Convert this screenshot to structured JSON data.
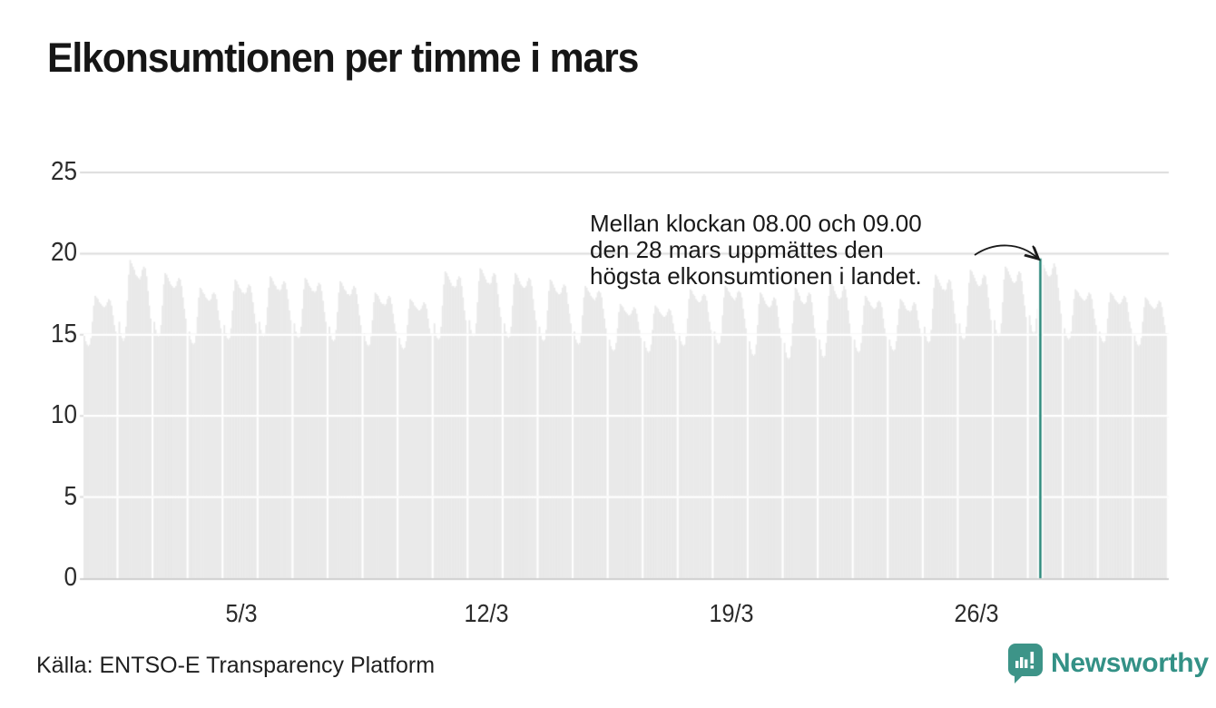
{
  "title": "Elkonsumtionen per timme i mars",
  "annotation": {
    "lines": [
      "Mellan klockan 08.00 och 09.00",
      "den 28 mars uppmättes den",
      "högsta elkonsumtionen i landet."
    ]
  },
  "footer": {
    "source": "Källa: ENTSO-E Transparency Platform",
    "brand": "Newsworthy"
  },
  "colors": {
    "bar": "#e9e9e9",
    "highlight": "#1d8172",
    "grid": "#dcdcdc",
    "baseline": "#cfcfcf",
    "grid_over_bars": "#ffffff",
    "brand_teal": "#339186",
    "text": "#2b2b2b"
  },
  "chart_data": {
    "type": "bar",
    "title": "Elkonsumtionen per timme i mars",
    "xlabel": "",
    "ylabel": "",
    "ylim": [
      0,
      25
    ],
    "y_ticks": [
      0,
      5,
      10,
      15,
      20,
      25
    ],
    "x_ticks": [
      {
        "label": "5/3",
        "day": 5
      },
      {
        "label": "12/3",
        "day": 12
      },
      {
        "label": "19/3",
        "day": 19
      },
      {
        "label": "26/3",
        "day": 26
      }
    ],
    "grid": true,
    "legend": "none",
    "highlight": {
      "date": "28/3",
      "hour": 8,
      "time_span": "08.00–09.00",
      "value": 19.7
    },
    "days": [
      {
        "date": "1/3",
        "values": [
          15.0,
          14.6,
          14.4,
          14.3,
          14.4,
          14.8,
          15.8,
          16.8,
          17.4,
          17.3,
          17.2,
          17.0,
          16.9,
          16.8,
          16.7,
          16.7,
          16.8,
          17.0,
          17.2,
          17.1,
          16.8,
          16.2,
          15.6,
          15.2
        ]
      },
      {
        "date": "2/3",
        "values": [
          15.8,
          15.1,
          14.8,
          14.6,
          14.8,
          15.5,
          17.1,
          18.7,
          19.6,
          19.4,
          19.2,
          19.0,
          18.7,
          18.6,
          18.5,
          18.4,
          18.6,
          19.0,
          19.2,
          19.1,
          18.6,
          17.7,
          16.8,
          16.0
        ]
      },
      {
        "date": "3/3",
        "values": [
          15.8,
          15.3,
          15.0,
          14.9,
          15.0,
          15.6,
          16.8,
          18.1,
          18.8,
          18.7,
          18.5,
          18.3,
          18.1,
          18.0,
          17.9,
          17.9,
          18.0,
          18.3,
          18.5,
          18.4,
          18.0,
          17.3,
          16.6,
          16.0
        ]
      },
      {
        "date": "4/3",
        "values": [
          15.2,
          14.7,
          14.5,
          14.4,
          14.5,
          15.0,
          16.1,
          17.3,
          17.9,
          17.8,
          17.6,
          17.5,
          17.3,
          17.2,
          17.1,
          17.1,
          17.2,
          17.5,
          17.6,
          17.5,
          17.2,
          16.5,
          15.9,
          15.4
        ]
      },
      {
        "date": "5/3",
        "values": [
          15.6,
          15.1,
          14.8,
          14.7,
          14.8,
          15.4,
          16.5,
          17.7,
          18.4,
          18.3,
          18.1,
          17.9,
          17.8,
          17.6,
          17.6,
          17.5,
          17.6,
          17.9,
          18.1,
          18.0,
          17.6,
          17.0,
          16.3,
          15.7
        ]
      },
      {
        "date": "6/3",
        "values": [
          15.8,
          15.3,
          15.0,
          14.9,
          15.0,
          15.6,
          16.7,
          17.9,
          18.6,
          18.5,
          18.3,
          18.1,
          18.0,
          17.8,
          17.8,
          17.7,
          17.8,
          18.1,
          18.3,
          18.2,
          17.8,
          17.2,
          16.5,
          15.9
        ]
      },
      {
        "date": "7/3",
        "values": [
          15.7,
          15.2,
          14.9,
          14.8,
          14.9,
          15.5,
          16.6,
          17.8,
          18.5,
          18.4,
          18.2,
          18.0,
          17.9,
          17.7,
          17.7,
          17.6,
          17.7,
          18.0,
          18.2,
          18.1,
          17.7,
          17.1,
          16.4,
          15.8
        ]
      },
      {
        "date": "8/3",
        "values": [
          15.5,
          15.0,
          14.7,
          14.6,
          14.7,
          15.3,
          16.4,
          17.6,
          18.3,
          18.2,
          18.0,
          17.8,
          17.7,
          17.5,
          17.5,
          17.4,
          17.5,
          17.8,
          18.0,
          17.9,
          17.5,
          16.9,
          16.2,
          15.6
        ]
      },
      {
        "date": "9/3",
        "values": [
          15.1,
          14.6,
          14.4,
          14.3,
          14.4,
          14.9,
          15.9,
          17.0,
          17.6,
          17.5,
          17.4,
          17.2,
          17.0,
          16.9,
          16.9,
          16.8,
          16.9,
          17.2,
          17.4,
          17.3,
          16.9,
          16.3,
          15.7,
          15.2
        ]
      },
      {
        "date": "10/3",
        "values": [
          14.8,
          14.4,
          14.2,
          14.1,
          14.2,
          14.6,
          15.6,
          16.6,
          17.2,
          17.1,
          17.0,
          16.8,
          16.7,
          16.6,
          16.5,
          16.5,
          16.6,
          16.8,
          17.0,
          16.9,
          16.6,
          16.0,
          15.4,
          15.0
        ]
      },
      {
        "date": "11/3",
        "values": [
          15.7,
          15.1,
          14.8,
          14.7,
          14.8,
          15.5,
          16.8,
          18.1,
          18.9,
          18.8,
          18.6,
          18.4,
          18.2,
          18.0,
          18.0,
          17.9,
          18.0,
          18.4,
          18.6,
          18.5,
          18.0,
          17.3,
          16.5,
          15.9
        ]
      },
      {
        "date": "12/3",
        "values": [
          15.9,
          15.3,
          15.0,
          14.9,
          15.0,
          15.7,
          17.0,
          18.3,
          19.1,
          19.0,
          18.8,
          18.6,
          18.4,
          18.2,
          18.2,
          18.1,
          18.2,
          18.6,
          18.8,
          18.7,
          18.2,
          17.5,
          16.7,
          16.1
        ]
      },
      {
        "date": "13/3",
        "values": [
          15.7,
          15.2,
          14.9,
          14.8,
          14.9,
          15.5,
          16.8,
          18.1,
          18.8,
          18.7,
          18.5,
          18.3,
          18.1,
          18.0,
          17.9,
          17.9,
          18.0,
          18.3,
          18.5,
          18.4,
          18.0,
          17.2,
          16.5,
          15.9
        ]
      },
      {
        "date": "14/3",
        "values": [
          15.5,
          15.0,
          14.7,
          14.6,
          14.7,
          15.3,
          16.5,
          17.7,
          18.4,
          18.3,
          18.1,
          17.9,
          17.7,
          17.6,
          17.5,
          17.5,
          17.6,
          17.9,
          18.1,
          18.0,
          17.6,
          16.9,
          16.3,
          15.7
        ]
      },
      {
        "date": "15/3",
        "values": [
          15.2,
          14.7,
          14.5,
          14.4,
          14.5,
          15.0,
          16.2,
          17.3,
          18.0,
          17.9,
          17.7,
          17.6,
          17.4,
          17.3,
          17.2,
          17.1,
          17.3,
          17.6,
          17.7,
          17.6,
          17.3,
          16.6,
          16.0,
          15.4
        ]
      },
      {
        "date": "16/3",
        "values": [
          14.7,
          14.3,
          14.1,
          14.0,
          14.1,
          14.5,
          15.4,
          16.4,
          16.9,
          16.8,
          16.7,
          16.5,
          16.4,
          16.3,
          16.2,
          16.2,
          16.3,
          16.5,
          16.7,
          16.6,
          16.3,
          15.8,
          15.3,
          14.8
        ]
      },
      {
        "date": "17/3",
        "values": [
          14.6,
          14.2,
          14.0,
          13.9,
          14.0,
          14.4,
          15.3,
          16.3,
          16.8,
          16.7,
          16.6,
          16.4,
          16.3,
          16.2,
          16.1,
          16.1,
          16.2,
          16.4,
          16.6,
          16.5,
          16.2,
          15.7,
          15.2,
          14.7
        ]
      },
      {
        "date": "18/3",
        "values": [
          15.1,
          14.6,
          14.4,
          14.3,
          14.4,
          14.9,
          16.0,
          17.2,
          17.8,
          17.7,
          17.5,
          17.4,
          17.2,
          17.1,
          17.0,
          17.0,
          17.1,
          17.4,
          17.5,
          17.4,
          17.1,
          16.4,
          15.8,
          15.3
        ]
      },
      {
        "date": "19/3",
        "values": [
          15.2,
          14.7,
          14.5,
          14.4,
          14.5,
          15.0,
          16.2,
          17.3,
          18.0,
          17.9,
          17.7,
          17.6,
          17.4,
          17.3,
          17.2,
          17.1,
          17.3,
          17.6,
          17.7,
          17.6,
          17.3,
          16.6,
          16.0,
          15.4
        ]
      },
      {
        "date": "20/3",
        "values": [
          14.6,
          14.1,
          13.8,
          13.7,
          13.8,
          14.4,
          15.6,
          16.9,
          17.6,
          17.5,
          17.3,
          17.1,
          16.9,
          16.8,
          16.7,
          16.7,
          16.8,
          17.1,
          17.3,
          17.2,
          16.8,
          16.1,
          15.4,
          14.8
        ]
      },
      {
        "date": "21/3",
        "values": [
          14.5,
          13.9,
          13.6,
          13.5,
          13.6,
          14.3,
          15.7,
          17.1,
          17.9,
          17.8,
          17.6,
          17.4,
          17.1,
          17.0,
          16.9,
          16.9,
          17.0,
          17.4,
          17.6,
          17.5,
          17.0,
          16.2,
          15.4,
          14.8
        ]
      },
      {
        "date": "22/3",
        "values": [
          14.7,
          14.1,
          13.7,
          13.6,
          13.7,
          14.5,
          15.9,
          17.4,
          18.3,
          18.2,
          18.0,
          17.7,
          17.5,
          17.3,
          17.2,
          17.2,
          17.3,
          17.7,
          18.0,
          17.8,
          17.3,
          16.5,
          15.7,
          14.9
        ]
      },
      {
        "date": "23/3",
        "values": [
          14.7,
          14.2,
          14.0,
          13.9,
          14.0,
          14.5,
          15.6,
          16.8,
          17.4,
          17.3,
          17.1,
          17.0,
          16.8,
          16.7,
          16.6,
          16.6,
          16.7,
          17.0,
          17.1,
          17.0,
          16.7,
          16.0,
          15.4,
          14.9
        ]
      },
      {
        "date": "24/3",
        "values": [
          14.7,
          14.3,
          14.1,
          14.0,
          14.1,
          14.6,
          15.6,
          16.6,
          17.2,
          17.1,
          17.0,
          16.8,
          16.6,
          16.5,
          16.5,
          16.4,
          16.5,
          16.8,
          17.0,
          16.9,
          16.5,
          15.9,
          15.4,
          14.9
        ]
      },
      {
        "date": "25/3",
        "values": [
          15.5,
          14.9,
          14.6,
          14.5,
          14.6,
          15.3,
          16.6,
          17.9,
          18.7,
          18.6,
          18.4,
          18.2,
          18.0,
          17.8,
          17.8,
          17.7,
          17.8,
          18.2,
          18.4,
          18.3,
          17.8,
          17.1,
          16.3,
          15.7
        ]
      },
      {
        "date": "26/3",
        "values": [
          15.7,
          15.1,
          14.8,
          14.7,
          14.8,
          15.5,
          16.8,
          18.2,
          19.0,
          18.9,
          18.7,
          18.5,
          18.3,
          18.1,
          18.0,
          18.0,
          18.1,
          18.5,
          18.7,
          18.6,
          18.1,
          17.3,
          16.6,
          15.9
        ]
      },
      {
        "date": "27/3",
        "values": [
          15.9,
          15.3,
          15.0,
          14.9,
          15.0,
          15.7,
          17.0,
          18.4,
          19.2,
          19.1,
          18.9,
          18.7,
          18.5,
          18.3,
          18.2,
          18.2,
          18.3,
          18.7,
          18.9,
          18.8,
          18.3,
          17.5,
          16.8,
          16.1
        ]
      },
      {
        "date": "28/3",
        "values": [
          16.2,
          15.6,
          15.2,
          15.1,
          15.2,
          16.0,
          16.6,
          17.6,
          19.7,
          19.5,
          19.3,
          19.1,
          18.9,
          18.7,
          18.6,
          18.6,
          18.7,
          19.1,
          19.4,
          19.2,
          18.7,
          17.9,
          17.1,
          16.3
        ]
      },
      {
        "date": "29/3",
        "values": [
          15.4,
          15.0,
          14.8,
          14.7,
          14.8,
          15.2,
          16.2,
          17.2,
          17.8,
          17.7,
          17.6,
          17.4,
          17.3,
          17.2,
          17.1,
          17.1,
          17.2,
          17.4,
          17.6,
          17.5,
          17.2,
          16.6,
          16.0,
          15.6
        ]
      },
      {
        "date": "30/3",
        "values": [
          15.2,
          14.8,
          14.6,
          14.5,
          14.6,
          15.0,
          16.0,
          17.0,
          17.6,
          17.5,
          17.4,
          17.2,
          17.1,
          17.0,
          16.9,
          16.9,
          17.0,
          17.2,
          17.4,
          17.3,
          17.0,
          16.4,
          15.8,
          15.4
        ]
      },
      {
        "date": "31/3",
        "values": [
          15.0,
          14.6,
          14.4,
          14.3,
          14.4,
          14.8,
          15.8,
          16.7,
          17.3,
          17.2,
          17.1,
          16.9,
          16.8,
          16.7,
          16.6,
          16.6,
          16.7,
          16.9,
          17.1,
          17.0,
          16.7,
          16.1,
          15.6,
          15.1
        ]
      }
    ]
  }
}
